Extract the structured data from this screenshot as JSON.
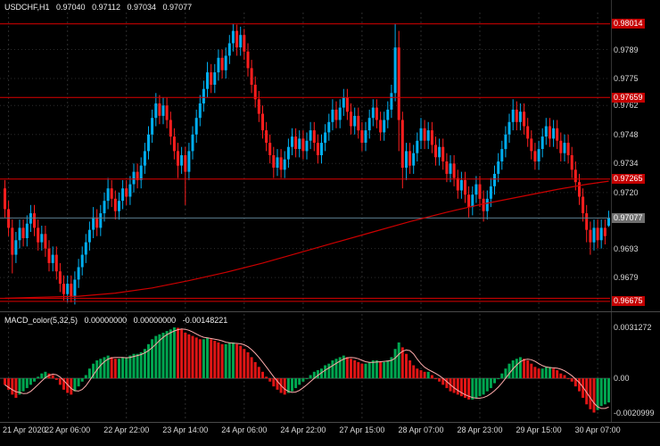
{
  "header": {
    "symbol": "USDCHF,H1",
    "open": "0.97040",
    "high": "0.97112",
    "low": "0.97034",
    "close": "0.97077"
  },
  "colors": {
    "background": "#000000",
    "bull": "#00AEEF",
    "bear": "#FF1E1E",
    "grid": "#2d2d2d",
    "level_line": "#DD0000",
    "level_badge": "#C40000",
    "current_line": "#5B7E8F",
    "current_badge": "#6F6F6F",
    "ma_line": "#CC0000",
    "macd_up": "#00A650",
    "macd_down": "#E01515",
    "macd_signal": "#FFABAB",
    "axis_text": "#D9D9D9"
  },
  "chart_data": {
    "type": "candlestick",
    "symbol": "USDCHF",
    "timeframe": "H1",
    "title": "USDCHF,H1 0.97040 0.97112 0.97034 0.97077",
    "ohlc_current_bar": {
      "open": 0.9704,
      "high": 0.97112,
      "low": 0.97034,
      "close": 0.97077
    },
    "price_axis": {
      "min": 0.9664,
      "max": 0.9806,
      "ticks": [
        0.9789,
        0.9775,
        0.9762,
        0.9748,
        0.9734,
        0.972,
        0.9693,
        0.9679
      ]
    },
    "levels": [
      {
        "value": 0.98014,
        "label": "0.98014"
      },
      {
        "value": 0.97659,
        "label": "0.97659"
      },
      {
        "value": 0.97265,
        "label": "0.97265"
      },
      {
        "value": 0.9669,
        "label": ""
      },
      {
        "value": 0.96675,
        "label": "0.96675"
      }
    ],
    "current_price": {
      "value": 0.97077,
      "label": "0.97077"
    },
    "time_labels": [
      {
        "index": 1,
        "text": "21 Apr 2020"
      },
      {
        "index": 17,
        "text": "22 Apr 06:00"
      },
      {
        "index": 33,
        "text": "22 Apr 22:00"
      },
      {
        "index": 49,
        "text": "23 Apr 14:00"
      },
      {
        "index": 65,
        "text": "24 Apr 06:00"
      },
      {
        "index": 81,
        "text": "24 Apr 22:00"
      },
      {
        "index": 97,
        "text": "27 Apr 15:00"
      },
      {
        "index": 113,
        "text": "28 Apr 07:00"
      },
      {
        "index": 129,
        "text": "28 Apr 23:00"
      },
      {
        "index": 145,
        "text": "29 Apr 15:00"
      },
      {
        "index": 161,
        "text": "30 Apr 07:00"
      }
    ],
    "candles": [
      [
        0.9722,
        0.9726,
        0.9708,
        0.9712
      ],
      [
        0.9712,
        0.9716,
        0.9699,
        0.9703
      ],
      [
        0.9703,
        0.9707,
        0.9681,
        0.969
      ],
      [
        0.969,
        0.9701,
        0.9686,
        0.9697
      ],
      [
        0.9697,
        0.9707,
        0.9693,
        0.9703
      ],
      [
        0.9703,
        0.9707,
        0.9694,
        0.9698
      ],
      [
        0.9698,
        0.9709,
        0.9694,
        0.9705
      ],
      [
        0.9705,
        0.9714,
        0.9701,
        0.971
      ],
      [
        0.971,
        0.9714,
        0.9699,
        0.9703
      ],
      [
        0.9703,
        0.9707,
        0.9692,
        0.9696
      ],
      [
        0.9696,
        0.9704,
        0.9692,
        0.97
      ],
      [
        0.97,
        0.9704,
        0.9689,
        0.9693
      ],
      [
        0.9693,
        0.9697,
        0.9682,
        0.9686
      ],
      [
        0.9686,
        0.9694,
        0.9682,
        0.969
      ],
      [
        0.969,
        0.9694,
        0.9678,
        0.9682
      ],
      [
        0.9682,
        0.9686,
        0.9672,
        0.9676
      ],
      [
        0.9676,
        0.968,
        0.9668,
        0.9671
      ],
      [
        0.9671,
        0.968,
        0.9667,
        0.9676
      ],
      [
        0.9676,
        0.968,
        0.9667,
        0.967
      ],
      [
        0.967,
        0.9682,
        0.9666,
        0.9678
      ],
      [
        0.9678,
        0.9688,
        0.9674,
        0.9684
      ],
      [
        0.9684,
        0.9694,
        0.968,
        0.969
      ],
      [
        0.969,
        0.97,
        0.9686,
        0.9696
      ],
      [
        0.9696,
        0.9706,
        0.9692,
        0.9702
      ],
      [
        0.9702,
        0.9713,
        0.9698,
        0.9708
      ],
      [
        0.9708,
        0.9712,
        0.9699,
        0.9703
      ],
      [
        0.9703,
        0.9714,
        0.9699,
        0.971
      ],
      [
        0.971,
        0.972,
        0.9706,
        0.9716
      ],
      [
        0.9716,
        0.9727,
        0.9712,
        0.9722
      ],
      [
        0.9722,
        0.9726,
        0.9713,
        0.9717
      ],
      [
        0.9717,
        0.9721,
        0.9707,
        0.9711
      ],
      [
        0.9711,
        0.972,
        0.9707,
        0.9716
      ],
      [
        0.9716,
        0.9726,
        0.9712,
        0.9722
      ],
      [
        0.9722,
        0.9726,
        0.9714,
        0.9718
      ],
      [
        0.9718,
        0.9728,
        0.9714,
        0.9724
      ],
      [
        0.9724,
        0.9734,
        0.972,
        0.973
      ],
      [
        0.973,
        0.9734,
        0.9722,
        0.9726
      ],
      [
        0.9726,
        0.9737,
        0.9722,
        0.9733
      ],
      [
        0.9733,
        0.9744,
        0.9729,
        0.974
      ],
      [
        0.974,
        0.9752,
        0.9736,
        0.9748
      ],
      [
        0.9748,
        0.976,
        0.9744,
        0.9756
      ],
      [
        0.9756,
        0.9768,
        0.9752,
        0.9763
      ],
      [
        0.9763,
        0.9767,
        0.9753,
        0.9757
      ],
      [
        0.9757,
        0.9766,
        0.9753,
        0.9762
      ],
      [
        0.9762,
        0.9766,
        0.9751,
        0.9755
      ],
      [
        0.9755,
        0.9759,
        0.9743,
        0.9747
      ],
      [
        0.9747,
        0.9751,
        0.9736,
        0.974
      ],
      [
        0.974,
        0.9744,
        0.9727,
        0.9733
      ],
      [
        0.9733,
        0.9742,
        0.9729,
        0.9738
      ],
      [
        0.9738,
        0.9742,
        0.9714,
        0.973
      ],
      [
        0.973,
        0.9744,
        0.9726,
        0.974
      ],
      [
        0.974,
        0.9752,
        0.9736,
        0.9748
      ],
      [
        0.9748,
        0.976,
        0.9744,
        0.9756
      ],
      [
        0.9756,
        0.9767,
        0.9752,
        0.9763
      ],
      [
        0.9763,
        0.9774,
        0.9759,
        0.977
      ],
      [
        0.977,
        0.9783,
        0.9766,
        0.9778
      ],
      [
        0.9778,
        0.9782,
        0.9768,
        0.9772
      ],
      [
        0.9772,
        0.9782,
        0.9768,
        0.9778
      ],
      [
        0.9778,
        0.9789,
        0.9774,
        0.9785
      ],
      [
        0.9785,
        0.9789,
        0.9775,
        0.9779
      ],
      [
        0.9779,
        0.979,
        0.9775,
        0.9786
      ],
      [
        0.9786,
        0.9796,
        0.9782,
        0.9792
      ],
      [
        0.9792,
        0.98014,
        0.9788,
        0.9798
      ],
      [
        0.9798,
        0.9801,
        0.9786,
        0.979
      ],
      [
        0.979,
        0.98,
        0.9786,
        0.9796
      ],
      [
        0.9796,
        0.9799,
        0.9784,
        0.9788
      ],
      [
        0.9788,
        0.9792,
        0.9776,
        0.978
      ],
      [
        0.978,
        0.9784,
        0.9768,
        0.9772
      ],
      [
        0.9772,
        0.9776,
        0.9761,
        0.9765
      ],
      [
        0.9765,
        0.9769,
        0.9754,
        0.9758
      ],
      [
        0.9758,
        0.9762,
        0.9746,
        0.975
      ],
      [
        0.975,
        0.9754,
        0.974,
        0.9744
      ],
      [
        0.9744,
        0.9748,
        0.9734,
        0.9738
      ],
      [
        0.9738,
        0.9742,
        0.9727,
        0.9732
      ],
      [
        0.9732,
        0.9741,
        0.9728,
        0.9737
      ],
      [
        0.9737,
        0.9741,
        0.9727,
        0.9731
      ],
      [
        0.9731,
        0.974,
        0.9727,
        0.9736
      ],
      [
        0.9736,
        0.9746,
        0.9732,
        0.9742
      ],
      [
        0.9742,
        0.9751,
        0.9738,
        0.9747
      ],
      [
        0.9747,
        0.9751,
        0.9737,
        0.9741
      ],
      [
        0.9741,
        0.975,
        0.9737,
        0.9746
      ],
      [
        0.9746,
        0.975,
        0.9736,
        0.974
      ],
      [
        0.974,
        0.9749,
        0.9736,
        0.9745
      ],
      [
        0.9745,
        0.9754,
        0.9741,
        0.975
      ],
      [
        0.975,
        0.9754,
        0.974,
        0.9744
      ],
      [
        0.9744,
        0.9748,
        0.9734,
        0.9738
      ],
      [
        0.9738,
        0.9748,
        0.9734,
        0.9744
      ],
      [
        0.9744,
        0.9753,
        0.974,
        0.9749
      ],
      [
        0.9749,
        0.9758,
        0.9745,
        0.9754
      ],
      [
        0.9754,
        0.9765,
        0.975,
        0.976
      ],
      [
        0.976,
        0.9764,
        0.9751,
        0.9755
      ],
      [
        0.9755,
        0.9765,
        0.9751,
        0.9761
      ],
      [
        0.9761,
        0.977,
        0.9757,
        0.9766
      ],
      [
        0.9766,
        0.977,
        0.9755,
        0.9759
      ],
      [
        0.9759,
        0.9763,
        0.9748,
        0.9752
      ],
      [
        0.9752,
        0.9761,
        0.9748,
        0.9757
      ],
      [
        0.9757,
        0.9761,
        0.9746,
        0.975
      ],
      [
        0.975,
        0.9754,
        0.974,
        0.9744
      ],
      [
        0.9744,
        0.9754,
        0.974,
        0.975
      ],
      [
        0.975,
        0.976,
        0.9746,
        0.9756
      ],
      [
        0.9756,
        0.9765,
        0.9752,
        0.9761
      ],
      [
        0.9761,
        0.9765,
        0.9751,
        0.9755
      ],
      [
        0.9755,
        0.9759,
        0.9745,
        0.9749
      ],
      [
        0.9749,
        0.9759,
        0.9745,
        0.9755
      ],
      [
        0.9755,
        0.9764,
        0.9751,
        0.976
      ],
      [
        0.976,
        0.9772,
        0.9756,
        0.9768
      ],
      [
        0.9768,
        0.98014,
        0.9764,
        0.979
      ],
      [
        0.979,
        0.9798,
        0.974,
        0.9755
      ],
      [
        0.9755,
        0.9759,
        0.9722,
        0.9732
      ],
      [
        0.9732,
        0.9744,
        0.9726,
        0.974
      ],
      [
        0.974,
        0.9744,
        0.9729,
        0.9733
      ],
      [
        0.9733,
        0.9743,
        0.9729,
        0.9739
      ],
      [
        0.9739,
        0.9749,
        0.9735,
        0.9745
      ],
      [
        0.9745,
        0.9756,
        0.9741,
        0.9751
      ],
      [
        0.9751,
        0.9755,
        0.9741,
        0.9745
      ],
      [
        0.9745,
        0.9754,
        0.9741,
        0.975
      ],
      [
        0.975,
        0.9754,
        0.9739,
        0.9743
      ],
      [
        0.9743,
        0.9747,
        0.9733,
        0.9737
      ],
      [
        0.9737,
        0.9746,
        0.9733,
        0.9742
      ],
      [
        0.9742,
        0.9746,
        0.9731,
        0.9735
      ],
      [
        0.9735,
        0.9739,
        0.9725,
        0.9729
      ],
      [
        0.9729,
        0.9738,
        0.9725,
        0.9734
      ],
      [
        0.9734,
        0.9738,
        0.9723,
        0.9727
      ],
      [
        0.9727,
        0.9731,
        0.9717,
        0.9721
      ],
      [
        0.9721,
        0.973,
        0.9717,
        0.9726
      ],
      [
        0.9726,
        0.973,
        0.9715,
        0.9719
      ],
      [
        0.9719,
        0.9723,
        0.9708,
        0.9713
      ],
      [
        0.9713,
        0.9723,
        0.9709,
        0.9719
      ],
      [
        0.9719,
        0.9728,
        0.9715,
        0.9724
      ],
      [
        0.9724,
        0.9728,
        0.9713,
        0.9717
      ],
      [
        0.9717,
        0.9721,
        0.9706,
        0.9711
      ],
      [
        0.9711,
        0.9721,
        0.9707,
        0.9717
      ],
      [
        0.9717,
        0.9727,
        0.9713,
        0.9723
      ],
      [
        0.9723,
        0.9733,
        0.9719,
        0.9729
      ],
      [
        0.9729,
        0.9739,
        0.9725,
        0.9735
      ],
      [
        0.9735,
        0.9745,
        0.9731,
        0.9741
      ],
      [
        0.9741,
        0.9752,
        0.9737,
        0.9748
      ],
      [
        0.9748,
        0.9758,
        0.9744,
        0.9754
      ],
      [
        0.9754,
        0.9765,
        0.975,
        0.976
      ],
      [
        0.976,
        0.9764,
        0.975,
        0.9754
      ],
      [
        0.9754,
        0.9763,
        0.975,
        0.9759
      ],
      [
        0.9759,
        0.9763,
        0.9748,
        0.9752
      ],
      [
        0.9752,
        0.9756,
        0.9742,
        0.9746
      ],
      [
        0.9746,
        0.975,
        0.9736,
        0.974
      ],
      [
        0.974,
        0.9744,
        0.9731,
        0.9735
      ],
      [
        0.9735,
        0.9745,
        0.9731,
        0.9741
      ],
      [
        0.9741,
        0.9751,
        0.9737,
        0.9747
      ],
      [
        0.9747,
        0.9756,
        0.9743,
        0.9752
      ],
      [
        0.9752,
        0.9756,
        0.9742,
        0.9746
      ],
      [
        0.9746,
        0.9755,
        0.9742,
        0.9751
      ],
      [
        0.9751,
        0.9755,
        0.9741,
        0.9745
      ],
      [
        0.9745,
        0.9749,
        0.9735,
        0.9739
      ],
      [
        0.9739,
        0.9748,
        0.9735,
        0.9744
      ],
      [
        0.9744,
        0.9748,
        0.9734,
        0.9738
      ],
      [
        0.9738,
        0.9742,
        0.9727,
        0.9731
      ],
      [
        0.9731,
        0.9735,
        0.9721,
        0.9725
      ],
      [
        0.9725,
        0.9729,
        0.9714,
        0.9718
      ],
      [
        0.9718,
        0.9722,
        0.9706,
        0.971
      ],
      [
        0.971,
        0.9714,
        0.9696,
        0.9702
      ],
      [
        0.9702,
        0.9706,
        0.969,
        0.9696
      ],
      [
        0.9696,
        0.9707,
        0.9692,
        0.9703
      ],
      [
        0.9703,
        0.9707,
        0.9693,
        0.9697
      ],
      [
        0.9697,
        0.9707,
        0.9693,
        0.9703
      ],
      [
        0.9703,
        0.9707,
        0.9695,
        0.9699
      ],
      [
        0.9704,
        0.97112,
        0.97034,
        0.97077
      ]
    ],
    "ma": [
      [
        0,
        0.9669
      ],
      [
        10,
        0.96695
      ],
      [
        20,
        0.967
      ],
      [
        30,
        0.96715
      ],
      [
        40,
        0.9674
      ],
      [
        50,
        0.96775
      ],
      [
        60,
        0.96815
      ],
      [
        70,
        0.9686
      ],
      [
        80,
        0.9691
      ],
      [
        90,
        0.9696
      ],
      [
        100,
        0.9701
      ],
      [
        110,
        0.9706
      ],
      [
        120,
        0.97105
      ],
      [
        130,
        0.97145
      ],
      [
        140,
        0.9718
      ],
      [
        150,
        0.97215
      ],
      [
        158,
        0.9724
      ],
      [
        164,
        0.97255
      ]
    ],
    "macd": {
      "label": "MACD_color(5,32,5)",
      "value1": "0.00000000",
      "value2": "0.00000000",
      "value3": "-0.00148221",
      "axis": {
        "max": 0.0031272,
        "min": -0.0020999,
        "max_label": "0.0031272",
        "zero_label": "0.00",
        "min_label": "-0.0020999"
      },
      "scale_max": 0.0034,
      "scale_min": -0.0024,
      "histogram": [
        -0.0004,
        -0.0007,
        -0.001,
        -0.0012,
        -0.001,
        -0.0008,
        -0.0006,
        -0.0004,
        -0.0002,
        0.0001,
        0.0003,
        0.0004,
        0.0003,
        0.0002,
        -0.0001,
        -0.0004,
        -0.0007,
        -0.0009,
        -0.001,
        -0.0008,
        -0.0005,
        -0.0002,
        0.0002,
        0.0006,
        0.0009,
        0.0011,
        0.0012,
        0.0013,
        0.0014,
        0.0013,
        0.0012,
        0.0012,
        0.0013,
        0.0013,
        0.0014,
        0.0015,
        0.0015,
        0.0016,
        0.0018,
        0.0021,
        0.0024,
        0.0026,
        0.0027,
        0.0028,
        0.0029,
        0.003,
        0.0031272,
        0.0031,
        0.003,
        0.0028,
        0.0027,
        0.0026,
        0.0025,
        0.0024,
        0.0024,
        0.0025,
        0.0024,
        0.0023,
        0.0022,
        0.0021,
        0.0021,
        0.0022,
        0.0022,
        0.0021,
        0.002,
        0.0018,
        0.0016,
        0.0013,
        0.001,
        0.0007,
        0.0004,
        0.0001,
        -0.0002,
        -0.0005,
        -0.0007,
        -0.0009,
        -0.001,
        -0.0009,
        -0.0008,
        -0.0006,
        -0.0004,
        -0.0002,
        0.0,
        0.0002,
        0.0004,
        0.0005,
        0.0006,
        0.0008,
        0.0009,
        0.0011,
        0.0012,
        0.0013,
        0.0014,
        0.0013,
        0.0012,
        0.0011,
        0.001,
        0.0009,
        0.0009,
        0.001,
        0.0011,
        0.0011,
        0.001,
        0.001,
        0.0011,
        0.0013,
        0.0018,
        0.0022,
        0.0019,
        0.0015,
        0.0011,
        0.0008,
        0.0006,
        0.0005,
        0.0004,
        0.0004,
        0.0002,
        0.0,
        -0.0002,
        -0.0004,
        -0.0006,
        -0.0008,
        -0.0009,
        -0.001,
        -0.0011,
        -0.0012,
        -0.0013,
        -0.0013,
        -0.0012,
        -0.0011,
        -0.001,
        -0.0008,
        -0.0006,
        -0.0003,
        0.0,
        0.0003,
        0.0006,
        0.0009,
        0.0011,
        0.0012,
        0.0013,
        0.0012,
        0.0011,
        0.0009,
        0.0007,
        0.0006,
        0.0006,
        0.0007,
        0.0007,
        0.0006,
        0.0005,
        0.0003,
        0.0002,
        0.0,
        -0.0002,
        -0.0005,
        -0.0008,
        -0.0012,
        -0.0016,
        -0.0019,
        -0.0020999,
        -0.00195,
        -0.0017,
        -0.0016,
        -0.00148221
      ]
    }
  }
}
